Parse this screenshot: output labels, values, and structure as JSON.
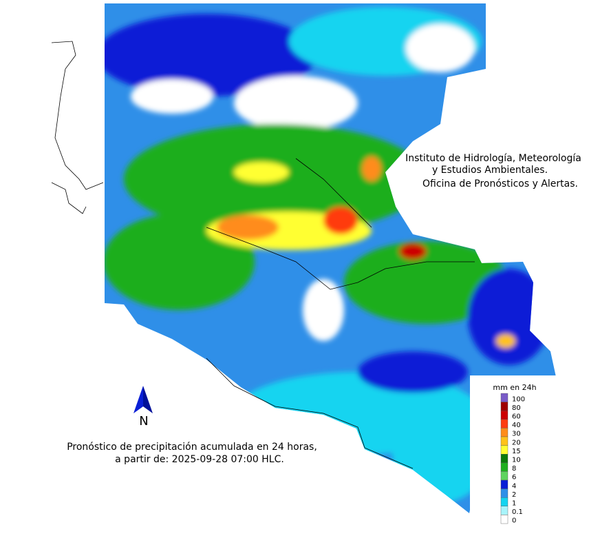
{
  "header": {
    "lines": [
      "Instituto de Hidrología, Meteorología",
      "y Estudios Ambientales.",
      "Oficina de Pronósticos y Alertas."
    ]
  },
  "north_label": "N",
  "caption": {
    "lines": [
      "Pronóstico de precipitación acumulada en 24 horas,",
      "a partir de: 2025-09-28 07:00 HLC."
    ]
  },
  "legend": {
    "title": "mm en 24h",
    "items": [
      {
        "label": 100,
        "color": "#7a5cc8"
      },
      {
        "label": 80,
        "color": "#9e0000"
      },
      {
        "label": 60,
        "color": "#cc0000"
      },
      {
        "label": 40,
        "color": "#ff3b10"
      },
      {
        "label": 30,
        "color": "#ff8c1a"
      },
      {
        "label": 20,
        "color": "#ffc21a"
      },
      {
        "label": 15,
        "color": "#ffff33"
      },
      {
        "label": 10,
        "color": "#0b7a0b"
      },
      {
        "label": 8,
        "color": "#1fae1f"
      },
      {
        "label": 6,
        "color": "#5fd45f"
      },
      {
        "label": 4,
        "color": "#0a1fd6"
      },
      {
        "label": 2,
        "color": "#2f8fe8"
      },
      {
        "label": 1,
        "color": "#14d4f0"
      },
      {
        "label": 0.1,
        "color": "#a8f4fb"
      },
      {
        "label": 0,
        "color": "#ffffff"
      }
    ]
  }
}
